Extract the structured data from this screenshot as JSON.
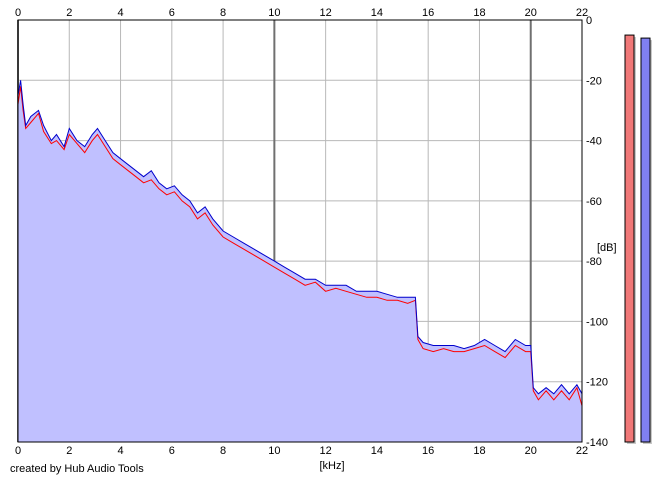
{
  "chart_data": {
    "type": "area",
    "xlabel": "[kHz]",
    "ylabel": "[dB]",
    "xlim": [
      0,
      22
    ],
    "ylim": [
      -140,
      0
    ],
    "x_ticks": [
      0,
      2,
      4,
      6,
      8,
      10,
      12,
      14,
      16,
      18,
      20,
      22
    ],
    "y_ticks": [
      0,
      -20,
      -40,
      -60,
      -80,
      -100,
      -120,
      -140
    ],
    "major_x_gridlines": [
      0,
      10,
      20
    ],
    "grid": true,
    "series": [
      {
        "color": "#0000cc",
        "fill": "#c0c0ff",
        "x": [
          0,
          0.1,
          0.2,
          0.3,
          0.5,
          0.8,
          1,
          1.3,
          1.5,
          1.8,
          2,
          2.3,
          2.6,
          2.9,
          3.1,
          3.4,
          3.7,
          4,
          4.3,
          4.6,
          4.9,
          5.2,
          5.5,
          5.8,
          6.1,
          6.4,
          6.7,
          7,
          7.3,
          7.6,
          8,
          8.4,
          8.8,
          9.2,
          9.6,
          10,
          10.4,
          10.8,
          11.2,
          11.6,
          12,
          12.4,
          12.8,
          13.2,
          13.6,
          14,
          14.4,
          14.8,
          15.2,
          15.5,
          15.6,
          15.8,
          16.2,
          16.6,
          17,
          17.4,
          17.8,
          18.2,
          18.6,
          19,
          19.4,
          19.8,
          20,
          20.1,
          20.3,
          20.6,
          20.9,
          21.2,
          21.5,
          21.8,
          22
        ],
        "values": [
          -25,
          -20,
          -28,
          -35,
          -32,
          -30,
          -35,
          -40,
          -38,
          -42,
          -36,
          -40,
          -42,
          -38,
          -36,
          -40,
          -44,
          -46,
          -48,
          -50,
          -52,
          -50,
          -54,
          -56,
          -55,
          -58,
          -60,
          -64,
          -62,
          -66,
          -70,
          -72,
          -74,
          -76,
          -78,
          -80,
          -82,
          -84,
          -86,
          -86,
          -88,
          -88,
          -88,
          -90,
          -90,
          -90,
          -91,
          -92,
          -92,
          -92,
          -105,
          -107,
          -108,
          -108,
          -108,
          -109,
          -108,
          -106,
          -108,
          -110,
          -106,
          -108,
          -108,
          -122,
          -124,
          -122,
          -124,
          -121,
          -124,
          -121,
          -124
        ]
      },
      {
        "color": "#ff0000",
        "x": [
          0,
          0.1,
          0.2,
          0.3,
          0.5,
          0.8,
          1,
          1.3,
          1.5,
          1.8,
          2,
          2.3,
          2.6,
          2.9,
          3.1,
          3.4,
          3.7,
          4,
          4.3,
          4.6,
          4.9,
          5.2,
          5.5,
          5.8,
          6.1,
          6.4,
          6.7,
          7,
          7.3,
          7.6,
          8,
          8.4,
          8.8,
          9.2,
          9.6,
          10,
          10.4,
          10.8,
          11.2,
          11.6,
          12,
          12.4,
          12.8,
          13.2,
          13.6,
          14,
          14.4,
          14.8,
          15.2,
          15.5,
          15.6,
          15.8,
          16.2,
          16.6,
          17,
          17.4,
          17.8,
          18.2,
          18.6,
          19,
          19.4,
          19.8,
          20,
          20.1,
          20.3,
          20.6,
          20.9,
          21.2,
          21.5,
          21.8,
          22
        ],
        "values": [
          -28,
          -22,
          -30,
          -36,
          -34,
          -31,
          -37,
          -41,
          -40,
          -43,
          -38,
          -41,
          -44,
          -40,
          -38,
          -42,
          -46,
          -48,
          -50,
          -52,
          -54,
          -53,
          -56,
          -58,
          -57,
          -60,
          -62,
          -66,
          -64,
          -68,
          -72,
          -74,
          -76,
          -78,
          -80,
          -82,
          -84,
          -86,
          -88,
          -87,
          -90,
          -89,
          -90,
          -91,
          -92,
          -92,
          -93,
          -93,
          -94,
          -93,
          -106,
          -109,
          -110,
          -109,
          -110,
          -110,
          -109,
          -108,
          -110,
          -112,
          -108,
          -110,
          -110,
          -123,
          -126,
          -123,
          -126,
          -123,
          -126,
          -122,
          -128
        ]
      }
    ],
    "level_meters": [
      {
        "color": "#f07878",
        "level_db": -5
      },
      {
        "color": "#8080f0",
        "level_db": -6
      }
    ]
  },
  "footer": {
    "credit": "created by Hub Audio Tools"
  }
}
